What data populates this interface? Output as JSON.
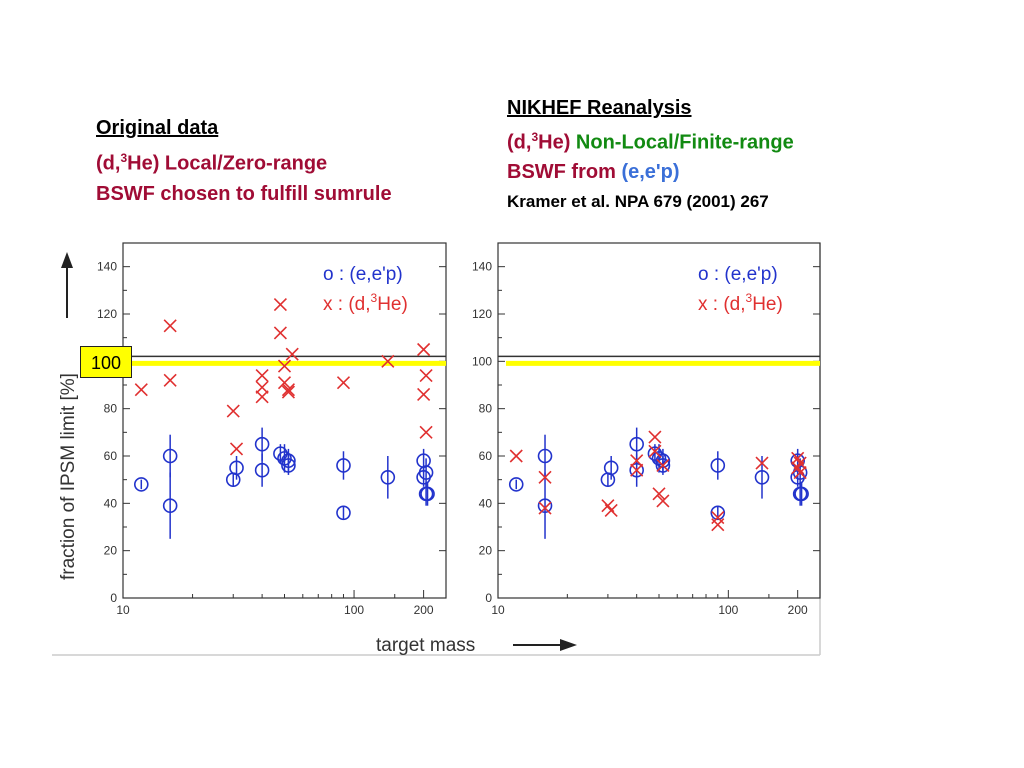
{
  "left_heading": {
    "title": "Original data",
    "line2_prefix": "(d,",
    "line2_sup": "3",
    "line2_suffix": "He)  Local/Zero-range",
    "line3": "BSWF chosen to fulfill sumrule"
  },
  "right_heading": {
    "title": "NIKHEF Reanalysis",
    "line2_prefix": "(d,",
    "line2_sup": "3",
    "line2_mid": "He)  ",
    "line2_green": "Non-Local/Finite-range",
    "line3_prefix": "BSWF from ",
    "line3_blue": "(e,e'p)",
    "line4": "Kramer et al. NPA 679 (2001) 267"
  },
  "marker_100": "100",
  "colors": {
    "blue": "#2233cc",
    "red": "#e03030",
    "yellow": "#ffff00",
    "dark_red": "#a00c35",
    "green": "#128a12"
  },
  "chart_data": [
    {
      "type": "scatter",
      "xlabel": "target mass",
      "ylabel": "fraction of IPSM limit [%]",
      "x_scale": "log",
      "xlim": [
        10,
        250
      ],
      "ylim": [
        0,
        150
      ],
      "x_ticks": [
        "10",
        "100",
        "200"
      ],
      "y_ticks": [
        "0",
        "20",
        "40",
        "60",
        "80",
        "100",
        "120",
        "140"
      ],
      "reference_line": 100,
      "legend": [
        {
          "symbol": "o",
          "text": ": (e,e'p)",
          "color": "#2233cc"
        },
        {
          "symbol": "x",
          "text": ": (d,",
          "sup": "3",
          "text2": "He)",
          "color": "#e03030"
        }
      ],
      "series": [
        {
          "name": "(e,e'p)",
          "marker": "o",
          "points": [
            [
              12,
              48,
              2
            ],
            [
              16,
              60,
              9
            ],
            [
              16,
              39,
              14
            ],
            [
              30,
              50,
              3
            ],
            [
              31,
              55,
              5
            ],
            [
              40,
              54,
              7
            ],
            [
              40,
              65,
              7
            ],
            [
              48,
              61,
              4
            ],
            [
              50,
              59,
              6
            ],
            [
              52,
              58,
              5
            ],
            [
              52,
              56,
              4
            ],
            [
              90,
              56,
              6
            ],
            [
              90,
              36,
              3
            ],
            [
              140,
              51,
              9
            ],
            [
              200,
              58,
              5
            ],
            [
              205,
              53,
              6
            ],
            [
              200,
              51,
              4
            ],
            [
              205,
              44,
              5
            ],
            [
              208,
              44,
              5
            ]
          ]
        },
        {
          "name": "(d,3He)",
          "marker": "x",
          "points": [
            [
              12,
              88
            ],
            [
              16,
              115
            ],
            [
              16,
              92
            ],
            [
              30,
              79
            ],
            [
              31,
              63
            ],
            [
              40,
              94
            ],
            [
              40,
              89
            ],
            [
              40,
              85
            ],
            [
              48,
              124
            ],
            [
              48,
              112
            ],
            [
              50,
              98
            ],
            [
              50,
              91
            ],
            [
              52,
              88
            ],
            [
              52,
              87
            ],
            [
              54,
              103
            ],
            [
              90,
              91
            ],
            [
              140,
              100
            ],
            [
              200,
              105
            ],
            [
              205,
              94
            ],
            [
              200,
              86
            ],
            [
              205,
              70
            ]
          ]
        }
      ]
    },
    {
      "type": "scatter",
      "x_scale": "log",
      "xlim": [
        10,
        250
      ],
      "ylim": [
        0,
        150
      ],
      "x_ticks": [
        "10",
        "100",
        "200"
      ],
      "y_ticks": [
        "0",
        "20",
        "40",
        "60",
        "80",
        "100",
        "120",
        "140"
      ],
      "reference_line": 100,
      "legend": [
        {
          "symbol": "o",
          "text": ": (e,e'p)",
          "color": "#2233cc"
        },
        {
          "symbol": "x",
          "text": ": (d,",
          "sup": "3",
          "text2": "He)",
          "color": "#e03030"
        }
      ],
      "series": [
        {
          "name": "(e,e'p)",
          "marker": "o",
          "points": [
            [
              12,
              48,
              2
            ],
            [
              16,
              60,
              9
            ],
            [
              16,
              39,
              14
            ],
            [
              30,
              50,
              3
            ],
            [
              31,
              55,
              5
            ],
            [
              40,
              54,
              7
            ],
            [
              40,
              65,
              7
            ],
            [
              48,
              61,
              4
            ],
            [
              50,
              59,
              6
            ],
            [
              52,
              58,
              5
            ],
            [
              52,
              56,
              4
            ],
            [
              90,
              56,
              6
            ],
            [
              90,
              36,
              3
            ],
            [
              140,
              51,
              9
            ],
            [
              200,
              58,
              5
            ],
            [
              205,
              53,
              6
            ],
            [
              200,
              51,
              4
            ],
            [
              205,
              44,
              5
            ],
            [
              208,
              44,
              5
            ]
          ]
        },
        {
          "name": "(d,3He)",
          "marker": "x",
          "points": [
            [
              12,
              60
            ],
            [
              16,
              51
            ],
            [
              16,
              38
            ],
            [
              30,
              39
            ],
            [
              31,
              37
            ],
            [
              40,
              58
            ],
            [
              40,
              54
            ],
            [
              48,
              68
            ],
            [
              48,
              62
            ],
            [
              50,
              44
            ],
            [
              52,
              56
            ],
            [
              52,
              41
            ],
            [
              90,
              31
            ],
            [
              90,
              34
            ],
            [
              140,
              57
            ],
            [
              200,
              59
            ],
            [
              205,
              57
            ],
            [
              200,
              55
            ],
            [
              205,
              53
            ]
          ]
        }
      ]
    }
  ]
}
